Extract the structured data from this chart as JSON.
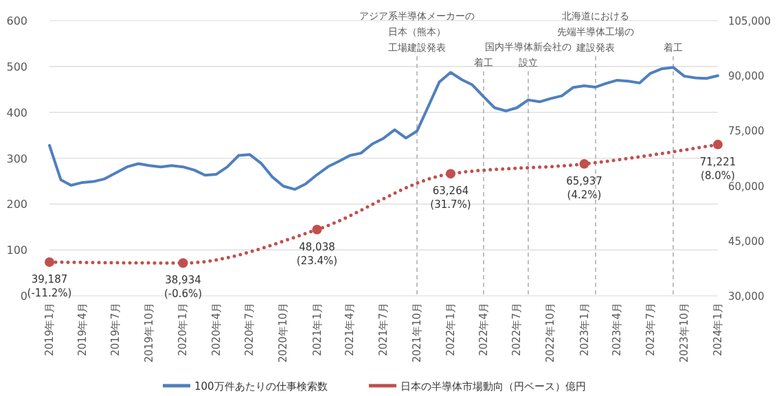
{
  "chart_data": {
    "type": "line",
    "x": [
      "2019-01",
      "2019-02",
      "2019-03",
      "2019-04",
      "2019-05",
      "2019-06",
      "2019-07",
      "2019-08",
      "2019-09",
      "2019-10",
      "2019-11",
      "2019-12",
      "2020-01",
      "2020-02",
      "2020-03",
      "2020-04",
      "2020-05",
      "2020-06",
      "2020-07",
      "2020-08",
      "2020-09",
      "2020-10",
      "2020-11",
      "2020-12",
      "2021-01",
      "2021-02",
      "2021-03",
      "2021-04",
      "2021-05",
      "2021-06",
      "2021-07",
      "2021-08",
      "2021-09",
      "2021-10",
      "2021-11",
      "2021-12",
      "2022-01",
      "2022-02",
      "2022-03",
      "2022-04",
      "2022-05",
      "2022-06",
      "2022-07",
      "2022-08",
      "2022-09",
      "2022-10",
      "2022-11",
      "2022-12",
      "2023-01",
      "2023-02",
      "2023-03",
      "2023-04",
      "2023-05",
      "2023-06",
      "2023-07",
      "2023-08",
      "2023-09",
      "2023-10",
      "2023-11",
      "2023-12",
      "2024-01"
    ],
    "series": [
      {
        "name": "100万件あたりの仕事検索数",
        "color": "#4f7fbf",
        "line_style": "solid",
        "marker": "none",
        "values": [
          328,
          253,
          241,
          247,
          249,
          255,
          268,
          281,
          288,
          284,
          281,
          284,
          281,
          274,
          263,
          265,
          281,
          306,
          308,
          289,
          259,
          239,
          232,
          244,
          264,
          282,
          293,
          306,
          311,
          331,
          343,
          362,
          344,
          359,
          413,
          466,
          487,
          471,
          460,
          434,
          410,
          403,
          410,
          427,
          423,
          430,
          436,
          454,
          458,
          455,
          463,
          470,
          468,
          464,
          485,
          495,
          498,
          479,
          475,
          474,
          480
        ]
      },
      {
        "name": "日本の半導体市場動向（円ベース）億円",
        "color": "#c0504d",
        "axis": "y2",
        "line_style": "dotted",
        "marker": "circle",
        "x": [
          "2019-01",
          "2020-01",
          "2021-01",
          "2022-01",
          "2023-01",
          "2024-01"
        ],
        "values": [
          39187,
          38934,
          48038,
          63264,
          65937,
          71221
        ],
        "value_labels": [
          "39,187\n(-11.2%)",
          "38,934\n(-0.6%)",
          "48,038\n(23.4%)",
          "63,264\n(31.7%)",
          "65,937\n(4.2%)",
          "71,221\n(8.0%)"
        ]
      }
    ],
    "xlim": [
      "2019-01",
      "2024-01"
    ],
    "xticks": [
      {
        "value": "2019-01",
        "label": "2019年1月"
      },
      {
        "value": "2019-04",
        "label": "2019年4月"
      },
      {
        "value": "2019-07",
        "label": "2019年7月"
      },
      {
        "value": "2019-10",
        "label": "2019年10月"
      },
      {
        "value": "2020-01",
        "label": "2020年1月"
      },
      {
        "value": "2020-04",
        "label": "2020年4月"
      },
      {
        "value": "2020-07",
        "label": "2020年7月"
      },
      {
        "value": "2020-10",
        "label": "2020年10月"
      },
      {
        "value": "2021-01",
        "label": "2021年1月"
      },
      {
        "value": "2021-04",
        "label": "2021年4月"
      },
      {
        "value": "2021-07",
        "label": "2021年7月"
      },
      {
        "value": "2021-10",
        "label": "2021年10月"
      },
      {
        "value": "2022-01",
        "label": "2022年1月"
      },
      {
        "value": "2022-04",
        "label": "2022年4月"
      },
      {
        "value": "2022-07",
        "label": "2022年7月"
      },
      {
        "value": "2022-10",
        "label": "2022年10月"
      },
      {
        "value": "2023-01",
        "label": "2023年1月"
      },
      {
        "value": "2023-04",
        "label": "2023年4月"
      },
      {
        "value": "2023-07",
        "label": "2023年7月"
      },
      {
        "value": "2023-10",
        "label": "2023年10月"
      },
      {
        "value": "2024-01",
        "label": "2024年1月"
      }
    ],
    "ylim": [
      0,
      600
    ],
    "yticks": [
      0,
      100,
      200,
      300,
      400,
      500,
      600
    ],
    "y2lim": [
      30000,
      105000
    ],
    "y2ticks": [
      {
        "value": 30000,
        "label": "30,000"
      },
      {
        "value": 45000,
        "label": "45,000"
      },
      {
        "value": 60000,
        "label": "60,000"
      },
      {
        "value": 75000,
        "label": "75,000"
      },
      {
        "value": 90000,
        "label": "90,000"
      },
      {
        "value": 105000,
        "label": "105,000"
      }
    ],
    "ref_lines": [
      {
        "axis": "x",
        "value": "2021-10",
        "label": "アジア系半導体メーカーの日本（熊本）工場建設発表",
        "color": "#aaaaaa",
        "line_style": "dashed"
      },
      {
        "axis": "x",
        "value": "2022-04",
        "label": "着工",
        "color": "#aaaaaa",
        "line_style": "dashed"
      },
      {
        "axis": "x",
        "value": "2022-08",
        "label": "国内半導体新会社の設立",
        "color": "#aaaaaa",
        "line_style": "dashed"
      },
      {
        "axis": "x",
        "value": "2023-02",
        "label": "北海道における先端半導体工場の建設発表",
        "color": "#aaaaaa",
        "line_style": "dashed"
      },
      {
        "axis": "x",
        "value": "2023-09",
        "label": "着工",
        "color": "#aaaaaa",
        "line_style": "dashed"
      }
    ],
    "grid": "y",
    "legend": "bottom"
  }
}
